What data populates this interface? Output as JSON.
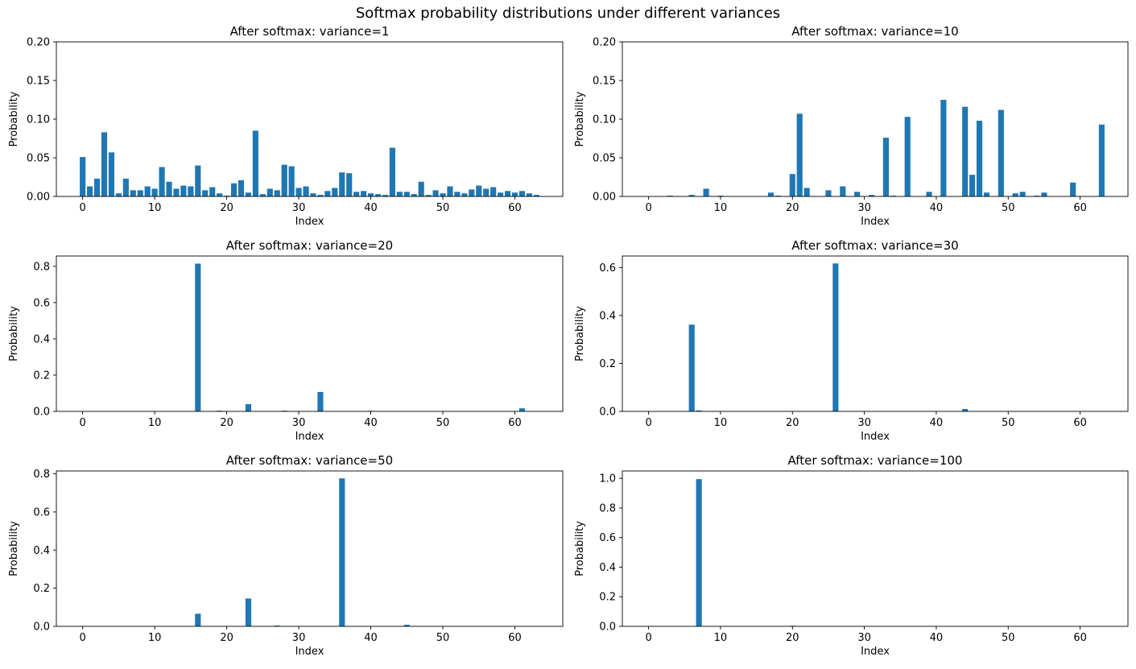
{
  "figure": {
    "title": "Softmax probability distributions under different variances",
    "bar_color": "#1f77b4"
  },
  "chart_data": [
    {
      "type": "bar",
      "title": "After softmax: variance=1",
      "xlabel": "Index",
      "ylabel": "Probability",
      "xlim": [
        -3.65,
        66.65
      ],
      "ylim": [
        0,
        0.2
      ],
      "xticks": [
        0,
        10,
        20,
        30,
        40,
        50,
        60
      ],
      "yticks": [
        0.0,
        0.05,
        0.1,
        0.15,
        0.2
      ],
      "ytick_labels": [
        "0.00",
        "0.05",
        "0.10",
        "0.15",
        "0.20"
      ],
      "categories": [
        0,
        1,
        2,
        3,
        4,
        5,
        6,
        7,
        8,
        9,
        10,
        11,
        12,
        13,
        14,
        15,
        16,
        17,
        18,
        19,
        20,
        21,
        22,
        23,
        24,
        25,
        26,
        27,
        28,
        29,
        30,
        31,
        32,
        33,
        34,
        35,
        36,
        37,
        38,
        39,
        40,
        41,
        42,
        43,
        44,
        45,
        46,
        47,
        48,
        49,
        50,
        51,
        52,
        53,
        54,
        55,
        56,
        57,
        58,
        59,
        60,
        61,
        62,
        63
      ],
      "values": [
        0.051,
        0.013,
        0.023,
        0.083,
        0.057,
        0.004,
        0.023,
        0.008,
        0.008,
        0.013,
        0.01,
        0.038,
        0.019,
        0.01,
        0.014,
        0.013,
        0.04,
        0.008,
        0.012,
        0.004,
        0.001,
        0.017,
        0.021,
        0.005,
        0.085,
        0.003,
        0.01,
        0.008,
        0.041,
        0.039,
        0.011,
        0.013,
        0.004,
        0.002,
        0.007,
        0.011,
        0.031,
        0.03,
        0.006,
        0.007,
        0.004,
        0.003,
        0.002,
        0.063,
        0.006,
        0.006,
        0.003,
        0.019,
        0.002,
        0.008,
        0.004,
        0.013,
        0.006,
        0.004,
        0.009,
        0.014,
        0.01,
        0.012,
        0.005,
        0.007,
        0.005,
        0.007,
        0.004,
        0.002
      ]
    },
    {
      "type": "bar",
      "title": "After softmax: variance=10",
      "xlabel": "Index",
      "ylabel": "Probability",
      "xlim": [
        -3.65,
        66.65
      ],
      "ylim": [
        0,
        0.2
      ],
      "xticks": [
        0,
        10,
        20,
        30,
        40,
        50,
        60
      ],
      "yticks": [
        0.0,
        0.05,
        0.1,
        0.15,
        0.2
      ],
      "ytick_labels": [
        "0.00",
        "0.05",
        "0.10",
        "0.15",
        "0.20"
      ],
      "categories": [
        0,
        1,
        2,
        3,
        4,
        5,
        6,
        7,
        8,
        9,
        10,
        11,
        12,
        13,
        14,
        15,
        16,
        17,
        18,
        19,
        20,
        21,
        22,
        23,
        24,
        25,
        26,
        27,
        28,
        29,
        30,
        31,
        32,
        33,
        34,
        35,
        36,
        37,
        38,
        39,
        40,
        41,
        42,
        43,
        44,
        45,
        46,
        47,
        48,
        49,
        50,
        51,
        52,
        53,
        54,
        55,
        56,
        57,
        58,
        59,
        60,
        61,
        62,
        63
      ],
      "values": [
        0,
        0,
        0,
        0.001,
        0,
        0,
        0.002,
        0,
        0.01,
        0,
        0.001,
        0,
        0,
        0,
        0,
        0,
        0,
        0.005,
        0.001,
        0,
        0.029,
        0.107,
        0.011,
        0,
        0,
        0.008,
        0,
        0.013,
        0,
        0.006,
        0,
        0.002,
        0,
        0.076,
        0.001,
        0,
        0.103,
        0,
        0,
        0.006,
        0,
        0.125,
        0,
        0,
        0.116,
        0.028,
        0.098,
        0.005,
        0,
        0.112,
        0,
        0.004,
        0.006,
        0,
        0.001,
        0.005,
        0,
        0,
        0,
        0.018,
        0,
        0,
        0,
        0.093
      ]
    },
    {
      "type": "bar",
      "title": "After softmax: variance=20",
      "xlabel": "Index",
      "ylabel": "Probability",
      "xlim": [
        -3.65,
        66.65
      ],
      "ylim": [
        0,
        0.857
      ],
      "xticks": [
        0,
        10,
        20,
        30,
        40,
        50,
        60
      ],
      "yticks": [
        0.0,
        0.2,
        0.4,
        0.6,
        0.8
      ],
      "ytick_labels": [
        "0.0",
        "0.2",
        "0.4",
        "0.6",
        "0.8"
      ],
      "categories": [
        0,
        1,
        2,
        3,
        4,
        5,
        6,
        7,
        8,
        9,
        10,
        11,
        12,
        13,
        14,
        15,
        16,
        17,
        18,
        19,
        20,
        21,
        22,
        23,
        24,
        25,
        26,
        27,
        28,
        29,
        30,
        31,
        32,
        33,
        34,
        35,
        36,
        37,
        38,
        39,
        40,
        41,
        42,
        43,
        44,
        45,
        46,
        47,
        48,
        49,
        50,
        51,
        52,
        53,
        54,
        55,
        56,
        57,
        58,
        59,
        60,
        61,
        62,
        63
      ],
      "values": [
        0,
        0,
        0,
        0,
        0,
        0,
        0,
        0,
        0,
        0,
        0,
        0,
        0,
        0,
        0,
        0,
        0.815,
        0,
        0,
        0.004,
        0,
        0,
        0,
        0.04,
        0,
        0,
        0,
        0,
        0.004,
        0,
        0,
        0,
        0,
        0.107,
        0,
        0,
        0,
        0,
        0,
        0,
        0.003,
        0,
        0,
        0,
        0,
        0,
        0,
        0,
        0,
        0,
        0,
        0,
        0,
        0,
        0,
        0,
        0,
        0,
        0,
        0,
        0,
        0.017,
        0,
        0
      ]
    },
    {
      "type": "bar",
      "title": "After softmax: variance=30",
      "xlabel": "Index",
      "ylabel": "Probability",
      "xlim": [
        -3.65,
        66.65
      ],
      "ylim": [
        0,
        0.648
      ],
      "xticks": [
        0,
        10,
        20,
        30,
        40,
        50,
        60
      ],
      "yticks": [
        0.0,
        0.2,
        0.4,
        0.6
      ],
      "ytick_labels": [
        "0.0",
        "0.2",
        "0.4",
        "0.6"
      ],
      "categories": [
        0,
        1,
        2,
        3,
        4,
        5,
        6,
        7,
        8,
        9,
        10,
        11,
        12,
        13,
        14,
        15,
        16,
        17,
        18,
        19,
        20,
        21,
        22,
        23,
        24,
        25,
        26,
        27,
        28,
        29,
        30,
        31,
        32,
        33,
        34,
        35,
        36,
        37,
        38,
        39,
        40,
        41,
        42,
        43,
        44,
        45,
        46,
        47,
        48,
        49,
        50,
        51,
        52,
        53,
        54,
        55,
        56,
        57,
        58,
        59,
        60,
        61,
        62,
        63
      ],
      "values": [
        0,
        0,
        0,
        0,
        0,
        0,
        0.362,
        0.004,
        0,
        0,
        0,
        0,
        0,
        0,
        0,
        0,
        0,
        0,
        0,
        0,
        0,
        0,
        0,
        0,
        0,
        0,
        0.617,
        0,
        0,
        0,
        0,
        0,
        0,
        0,
        0,
        0,
        0,
        0,
        0,
        0,
        0,
        0,
        0,
        0,
        0.01,
        0,
        0,
        0,
        0,
        0,
        0,
        0,
        0,
        0,
        0,
        0,
        0,
        0,
        0,
        0,
        0,
        0,
        0,
        0
      ]
    },
    {
      "type": "bar",
      "title": "After softmax: variance=50",
      "xlabel": "Index",
      "ylabel": "Probability",
      "xlim": [
        -3.65,
        66.65
      ],
      "ylim": [
        0,
        0.815
      ],
      "xticks": [
        0,
        10,
        20,
        30,
        40,
        50,
        60
      ],
      "yticks": [
        0.0,
        0.2,
        0.4,
        0.6,
        0.8
      ],
      "ytick_labels": [
        "0.0",
        "0.2",
        "0.4",
        "0.6",
        "0.8"
      ],
      "categories": [
        0,
        1,
        2,
        3,
        4,
        5,
        6,
        7,
        8,
        9,
        10,
        11,
        12,
        13,
        14,
        15,
        16,
        17,
        18,
        19,
        20,
        21,
        22,
        23,
        24,
        25,
        26,
        27,
        28,
        29,
        30,
        31,
        32,
        33,
        34,
        35,
        36,
        37,
        38,
        39,
        40,
        41,
        42,
        43,
        44,
        45,
        46,
        47,
        48,
        49,
        50,
        51,
        52,
        53,
        54,
        55,
        56,
        57,
        58,
        59,
        60,
        61,
        62,
        63
      ],
      "values": [
        0,
        0,
        0,
        0,
        0,
        0,
        0,
        0,
        0,
        0,
        0,
        0,
        0,
        0,
        0,
        0,
        0.066,
        0,
        0,
        0,
        0,
        0,
        0,
        0.146,
        0,
        0,
        0,
        0.004,
        0,
        0,
        0,
        0,
        0,
        0,
        0,
        0,
        0.776,
        0,
        0,
        0,
        0,
        0,
        0,
        0,
        0,
        0.008,
        0,
        0,
        0,
        0,
        0,
        0,
        0,
        0,
        0,
        0,
        0,
        0,
        0,
        0,
        0,
        0,
        0,
        0
      ]
    },
    {
      "type": "bar",
      "title": "After softmax: variance=100",
      "xlabel": "Index",
      "ylabel": "Probability",
      "xlim": [
        -3.65,
        66.65
      ],
      "ylim": [
        0,
        1.05
      ],
      "xticks": [
        0,
        10,
        20,
        30,
        40,
        50,
        60
      ],
      "yticks": [
        0.0,
        0.2,
        0.4,
        0.6,
        0.8,
        1.0
      ],
      "ytick_labels": [
        "0.0",
        "0.2",
        "0.4",
        "0.6",
        "0.8",
        "1.0"
      ],
      "categories": [
        0,
        1,
        2,
        3,
        4,
        5,
        6,
        7,
        8,
        9,
        10,
        11,
        12,
        13,
        14,
        15,
        16,
        17,
        18,
        19,
        20,
        21,
        22,
        23,
        24,
        25,
        26,
        27,
        28,
        29,
        30,
        31,
        32,
        33,
        34,
        35,
        36,
        37,
        38,
        39,
        40,
        41,
        42,
        43,
        44,
        45,
        46,
        47,
        48,
        49,
        50,
        51,
        52,
        53,
        54,
        55,
        56,
        57,
        58,
        59,
        60,
        61,
        62,
        63
      ],
      "values": [
        0,
        0,
        0,
        0,
        0,
        0,
        0,
        0.995,
        0,
        0,
        0,
        0,
        0,
        0,
        0,
        0,
        0,
        0,
        0,
        0,
        0.004,
        0,
        0,
        0,
        0,
        0,
        0,
        0,
        0,
        0,
        0,
        0,
        0,
        0,
        0,
        0,
        0,
        0,
        0,
        0,
        0,
        0,
        0,
        0,
        0,
        0,
        0,
        0,
        0,
        0,
        0,
        0,
        0,
        0,
        0,
        0,
        0,
        0,
        0,
        0,
        0,
        0,
        0,
        0
      ]
    }
  ]
}
